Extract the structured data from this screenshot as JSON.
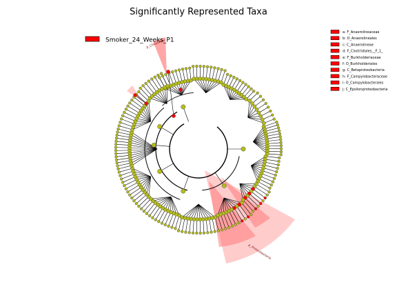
{
  "title": "Significantly Represented Taxa",
  "legend": {
    "label": "Smoker_24_Weeks_P1",
    "color": "#ff0000"
  },
  "colors": {
    "highlight": "#ff0000",
    "node": "#b5bd1a",
    "node_edge": "#333333",
    "shade": "#ff9a9a"
  },
  "biomarker_keys": [
    {
      "letter": "a",
      "label": "a: F_Anaerolineaceae"
    },
    {
      "letter": "b",
      "label": "b: O_Anaerolineales"
    },
    {
      "letter": "c",
      "label": "c: C_Anaerolineae"
    },
    {
      "letter": "d",
      "label": "d: F_Clostridiales__F_1_"
    },
    {
      "letter": "e",
      "label": "e: F_Burkholderiaceae"
    },
    {
      "letter": "f",
      "label": "f: O_Burkholderiales"
    },
    {
      "letter": "g",
      "label": "g: C_Betaproteobacteria"
    },
    {
      "letter": "h",
      "label": "h: F_Campylobacteraceae"
    },
    {
      "letter": "i",
      "label": "i: O_Campylobacterales"
    },
    {
      "letter": "j",
      "label": "j: C_Epsilonproteobacteria"
    }
  ],
  "clade_labels": {
    "chloroflexi": "p_Chloroflexi",
    "proteobacteria": "p_Proteobacteria"
  }
}
